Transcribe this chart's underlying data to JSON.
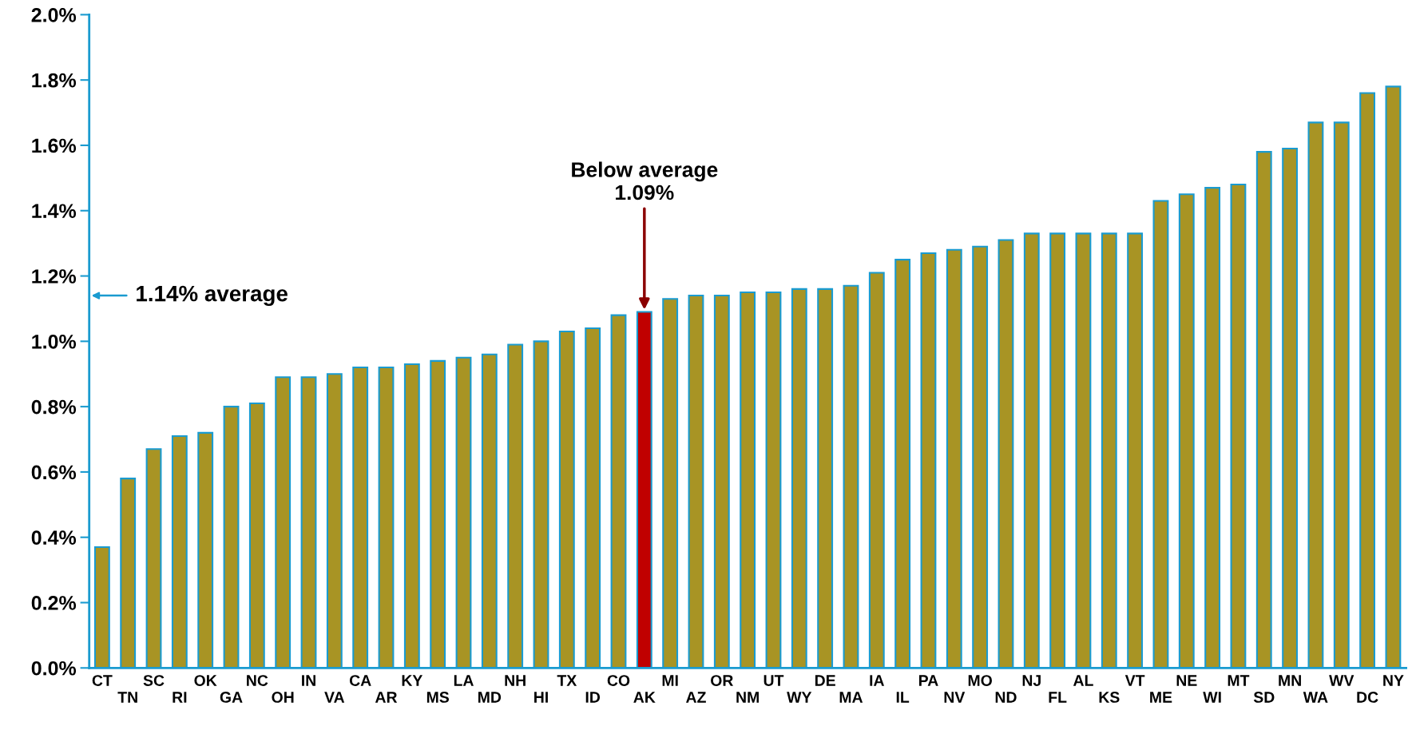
{
  "chart_data": {
    "type": "bar",
    "categories": [
      "CT",
      "TN",
      "SC",
      "RI",
      "OK",
      "GA",
      "NC",
      "OH",
      "IN",
      "VA",
      "CA",
      "AR",
      "KY",
      "MS",
      "LA",
      "MD",
      "NH",
      "HI",
      "TX",
      "ID",
      "CO",
      "AK",
      "MI",
      "AZ",
      "OR",
      "NM",
      "UT",
      "WY",
      "DE",
      "MA",
      "IA",
      "IL",
      "PA",
      "NV",
      "MO",
      "ND",
      "NJ",
      "FL",
      "AL",
      "KS",
      "VT",
      "ME",
      "NE",
      "WI",
      "MT",
      "SD",
      "MN",
      "WA",
      "WV",
      "DC",
      "NY"
    ],
    "values": [
      0.37,
      0.58,
      0.67,
      0.71,
      0.72,
      0.8,
      0.81,
      0.89,
      0.89,
      0.9,
      0.92,
      0.92,
      0.93,
      0.94,
      0.95,
      0.96,
      0.99,
      1.0,
      1.03,
      1.04,
      1.08,
      1.09,
      1.13,
      1.14,
      1.14,
      1.15,
      1.15,
      1.16,
      1.16,
      1.17,
      1.21,
      1.25,
      1.27,
      1.28,
      1.29,
      1.31,
      1.33,
      1.33,
      1.33,
      1.33,
      1.33,
      1.43,
      1.45,
      1.47,
      1.48,
      1.58,
      1.59,
      1.67,
      1.67,
      1.76,
      1.78
    ],
    "colors": [
      "#a89424",
      "#a89424",
      "#a89424",
      "#a89424",
      "#a89424",
      "#a89424",
      "#a89424",
      "#a89424",
      "#a89424",
      "#a89424",
      "#a89424",
      "#a89424",
      "#a89424",
      "#a89424",
      "#a89424",
      "#a89424",
      "#a89424",
      "#a89424",
      "#a89424",
      "#a89424",
      "#a89424",
      "#c00000",
      "#a89424",
      "#a89424",
      "#a89424",
      "#a89424",
      "#a89424",
      "#a89424",
      "#a89424",
      "#a89424",
      "#a89424",
      "#a89424",
      "#a89424",
      "#a89424",
      "#a89424",
      "#a89424",
      "#a89424",
      "#a89424",
      "#a89424",
      "#a89424",
      "#a89424",
      "#a89424",
      "#a89424",
      "#a89424",
      "#a89424",
      "#a89424",
      "#a89424",
      "#a89424",
      "#a89424",
      "#a89424",
      "#a89424"
    ],
    "ylim": [
      0,
      2.0
    ],
    "yticks": [
      {
        "value": 0,
        "label": "0.0%"
      },
      {
        "value": 0.2,
        "label": "0.2%"
      },
      {
        "value": 0.4,
        "label": "0.4%"
      },
      {
        "value": 0.6,
        "label": "0.6%"
      },
      {
        "value": 0.8,
        "label": "0.8%"
      },
      {
        "value": 1.0,
        "label": "1.0%"
      },
      {
        "value": 1.2,
        "label": "1.2%"
      },
      {
        "value": 1.4,
        "label": "1.4%"
      },
      {
        "value": 1.6,
        "label": "1.6%"
      },
      {
        "value": 1.8,
        "label": "1.8%"
      },
      {
        "value": 2.0,
        "label": "2.0%"
      }
    ],
    "annotations": [
      {
        "text": "Below average\n1.09%",
        "x": "AK",
        "y": 1.09
      },
      "1.14% average"
    ],
    "grid": false,
    "legend": false
  }
}
